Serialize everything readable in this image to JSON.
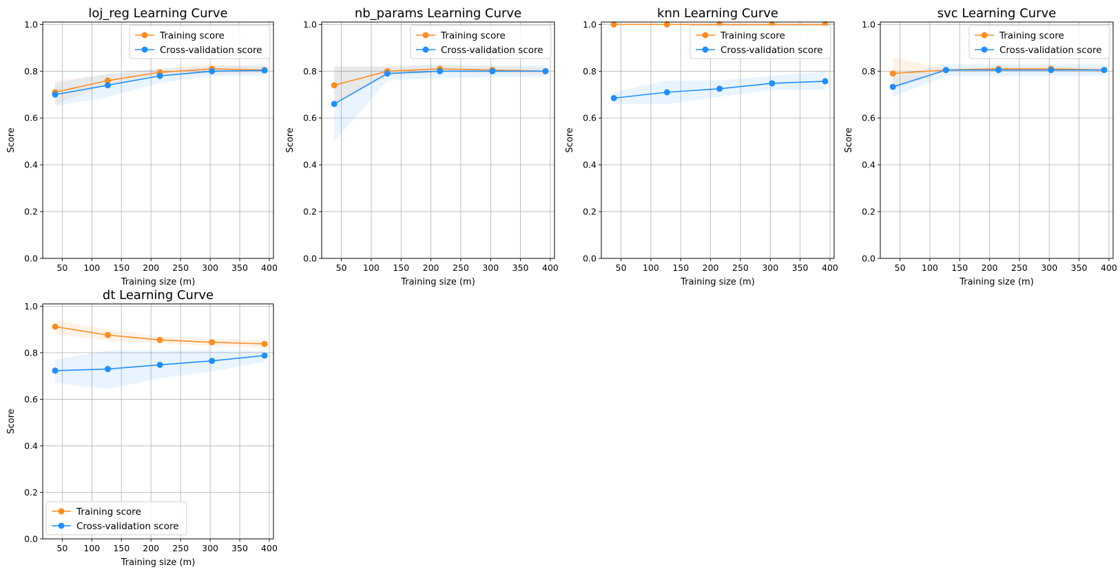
{
  "chart_data": [
    {
      "type": "line",
      "title": "loj_reg Learning Curve",
      "xlabel": "Training size (m)",
      "ylabel": "Score",
      "xlim": [
        17,
        407
      ],
      "ylim": [
        0,
        1.01
      ],
      "xticks": [
        50,
        100,
        150,
        200,
        250,
        300,
        350,
        400
      ],
      "yticks": [
        0.0,
        0.2,
        0.4,
        0.6,
        0.8,
        1.0
      ],
      "grid": true,
      "legend_position": "upper right",
      "x": [
        38,
        127,
        215,
        303,
        392
      ],
      "series": [
        {
          "name": "Training score",
          "color": "#ff8c1f",
          "values": [
            0.71,
            0.76,
            0.795,
            0.81,
            0.805
          ],
          "band_low": [
            0.66,
            0.74,
            0.78,
            0.79,
            0.79
          ],
          "band_high": [
            0.76,
            0.785,
            0.81,
            0.83,
            0.82
          ]
        },
        {
          "name": "Cross-validation score",
          "color": "#1e8fff",
          "values": [
            0.7,
            0.74,
            0.78,
            0.8,
            0.803
          ],
          "band_low": [
            0.65,
            0.69,
            0.75,
            0.78,
            0.78
          ],
          "band_high": [
            0.75,
            0.79,
            0.81,
            0.82,
            0.83
          ]
        }
      ]
    },
    {
      "type": "line",
      "title": "nb_params Learning Curve",
      "xlabel": "Training size (m)",
      "ylabel": "Score",
      "xlim": [
        17,
        407
      ],
      "ylim": [
        0,
        1.01
      ],
      "xticks": [
        50,
        100,
        150,
        200,
        250,
        300,
        350,
        400
      ],
      "yticks": [
        0.0,
        0.2,
        0.4,
        0.6,
        0.8,
        1.0
      ],
      "grid": true,
      "legend_position": "upper right",
      "x": [
        38,
        127,
        215,
        303,
        392
      ],
      "series": [
        {
          "name": "Training score",
          "color": "#ff8c1f",
          "values": [
            0.74,
            0.8,
            0.81,
            0.805,
            0.8
          ],
          "band_low": [
            0.66,
            0.78,
            0.795,
            0.79,
            0.785
          ],
          "band_high": [
            0.82,
            0.82,
            0.825,
            0.82,
            0.815
          ]
        },
        {
          "name": "Cross-validation score",
          "color": "#1e8fff",
          "values": [
            0.66,
            0.79,
            0.8,
            0.8,
            0.8
          ],
          "band_low": [
            0.5,
            0.76,
            0.77,
            0.775,
            0.775
          ],
          "band_high": [
            0.82,
            0.82,
            0.83,
            0.825,
            0.825
          ]
        }
      ]
    },
    {
      "type": "line",
      "title": "knn Learning Curve",
      "xlabel": "Training size (m)",
      "ylabel": "Score",
      "xlim": [
        17,
        407
      ],
      "ylim": [
        0,
        1.01
      ],
      "xticks": [
        50,
        100,
        150,
        200,
        250,
        300,
        350,
        400
      ],
      "yticks": [
        0.0,
        0.2,
        0.4,
        0.6,
        0.8,
        1.0
      ],
      "grid": true,
      "legend_position": "upper right",
      "x": [
        38,
        127,
        215,
        303,
        392
      ],
      "series": [
        {
          "name": "Training score",
          "color": "#ff8c1f",
          "values": [
            1.0,
            1.0,
            1.0,
            1.0,
            1.0
          ],
          "band_low": [
            1.0,
            1.0,
            1.0,
            1.0,
            1.0
          ],
          "band_high": [
            1.0,
            1.0,
            1.0,
            1.0,
            1.0
          ]
        },
        {
          "name": "Cross-validation score",
          "color": "#1e8fff",
          "values": [
            0.685,
            0.71,
            0.725,
            0.748,
            0.757
          ],
          "band_low": [
            0.66,
            0.66,
            0.69,
            0.72,
            0.72
          ],
          "band_high": [
            0.71,
            0.76,
            0.76,
            0.78,
            0.8
          ]
        }
      ]
    },
    {
      "type": "line",
      "title": "svc Learning Curve",
      "xlabel": "Training size (m)",
      "ylabel": "Score",
      "xlim": [
        17,
        407
      ],
      "ylim": [
        0,
        1.01
      ],
      "xticks": [
        50,
        100,
        150,
        200,
        250,
        300,
        350,
        400
      ],
      "yticks": [
        0.0,
        0.2,
        0.4,
        0.6,
        0.8,
        1.0
      ],
      "grid": true,
      "legend_position": "upper right",
      "x": [
        38,
        127,
        215,
        303,
        392
      ],
      "series": [
        {
          "name": "Training score",
          "color": "#ff8c1f",
          "values": [
            0.79,
            0.805,
            0.81,
            0.81,
            0.805
          ],
          "band_low": [
            0.72,
            0.8,
            0.8,
            0.8,
            0.795
          ],
          "band_high": [
            0.86,
            0.81,
            0.82,
            0.82,
            0.815
          ]
        },
        {
          "name": "Cross-validation score",
          "color": "#1e8fff",
          "values": [
            0.733,
            0.805,
            0.805,
            0.805,
            0.805
          ],
          "band_low": [
            0.69,
            0.78,
            0.78,
            0.78,
            0.78
          ],
          "band_high": [
            0.78,
            0.83,
            0.83,
            0.83,
            0.83
          ]
        }
      ]
    },
    {
      "type": "line",
      "title": "dt Learning Curve",
      "xlabel": "Training size (m)",
      "ylabel": "Score",
      "xlim": [
        17,
        407
      ],
      "ylim": [
        0,
        1.01
      ],
      "xticks": [
        50,
        100,
        150,
        200,
        250,
        300,
        350,
        400
      ],
      "yticks": [
        0.0,
        0.2,
        0.4,
        0.6,
        0.8,
        1.0
      ],
      "grid": true,
      "legend_position": "lower left",
      "x": [
        38,
        127,
        215,
        303,
        392
      ],
      "series": [
        {
          "name": "Training score",
          "color": "#ff8c1f",
          "values": [
            0.912,
            0.876,
            0.855,
            0.845,
            0.838
          ],
          "band_low": [
            0.88,
            0.85,
            0.84,
            0.83,
            0.82
          ],
          "band_high": [
            0.94,
            0.9,
            0.87,
            0.86,
            0.855
          ]
        },
        {
          "name": "Cross-validation score",
          "color": "#1e8fff",
          "values": [
            0.723,
            0.73,
            0.748,
            0.765,
            0.788
          ],
          "band_low": [
            0.67,
            0.645,
            0.69,
            0.72,
            0.76
          ],
          "band_high": [
            0.77,
            0.81,
            0.81,
            0.81,
            0.81
          ]
        }
      ]
    }
  ]
}
